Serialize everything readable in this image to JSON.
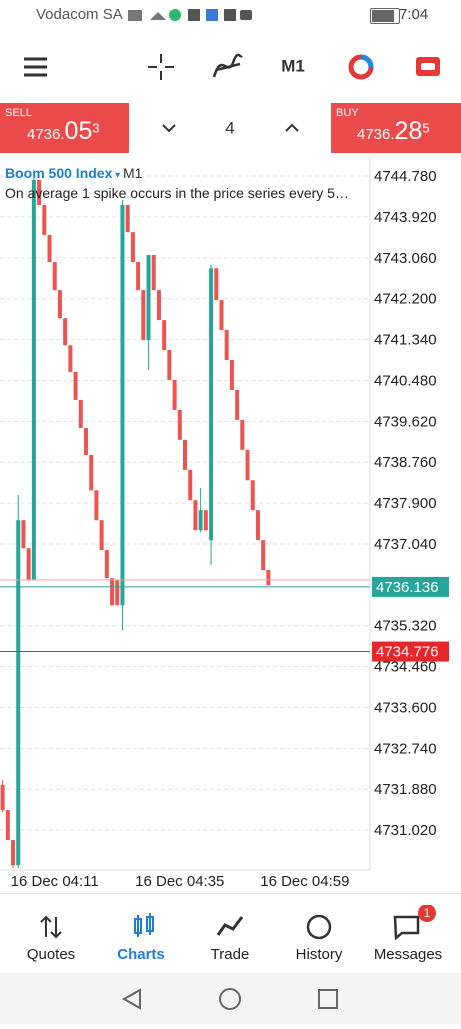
{
  "status_bar": {
    "carrier": "Vodacom SA",
    "time": "7:04"
  },
  "toolbar": {
    "timeframe": "M1"
  },
  "trade_panel": {
    "sell_label": "SELL",
    "sell_prefix": "4736.",
    "sell_big": "05",
    "sell_small": "3",
    "lot": "4",
    "buy_label": "BUY",
    "buy_prefix": "4736.",
    "buy_big": "28",
    "buy_small": "5"
  },
  "chart_data": {
    "type": "candlestick",
    "title": "Boom 500 Index",
    "timeframe": "M1",
    "subtitle": "On average 1 spike occurs in the price series every 5…",
    "categories": [
      null,
      null,
      null,
      null,
      null,
      null,
      null,
      null,
      null,
      null,
      "16 Dec 04:11",
      null,
      null,
      null,
      null,
      null,
      null,
      null,
      null,
      null,
      null,
      null,
      null,
      null,
      null,
      null,
      null,
      null,
      null,
      null,
      null,
      null,
      null,
      null,
      "16 Dec 04:35",
      null,
      null,
      null,
      null,
      null,
      null,
      null,
      null,
      null,
      null,
      null,
      null,
      null,
      null,
      null,
      null,
      null,
      null,
      null,
      null,
      null,
      null,
      null,
      "16 Dec 04:59",
      null,
      null,
      null,
      null,
      null,
      null,
      null,
      null,
      null,
      null,
      null,
      null
    ],
    "open": [
      4731.97,
      4731.44,
      4730.81,
      4730.28,
      4737.54,
      4736.95,
      4736.28,
      4744.7,
      4744.17,
      4743.54,
      4742.97,
      4742.38,
      4741.79,
      4741.22,
      4740.66,
      4740.07,
      4739.48,
      4738.91,
      4738.17,
      4737.54,
      4736.91,
      4736.32,
      4736.28,
      4735.75,
      4744.17,
      4743.6,
      4742.97,
      4742.38,
      4741.33,
      4743.12,
      4742.38,
      4741.75,
      4741.12,
      4740.49,
      4739.86,
      4739.23,
      4738.6,
      4737.96,
      4737.33,
      4737.75,
      4737.12,
      4742.84,
      4742.17,
      4741.54,
      4740.91,
      4740.28,
      4739.65,
      4739.02,
      4738.38,
      4737.75,
      4737.12,
      4736.49,
      null,
      null,
      null,
      null,
      null,
      null,
      null,
      null,
      null,
      null,
      null,
      null,
      null,
      null,
      null,
      null,
      null,
      null,
      null
    ],
    "high": [
      4732.07,
      4731.44,
      4730.81,
      4738.07,
      4737.54,
      4736.95,
      4744.74,
      4744.7,
      4744.17,
      4743.54,
      4742.97,
      4742.38,
      4741.79,
      4741.22,
      4740.66,
      4740.07,
      4739.48,
      4738.91,
      4738.17,
      4737.54,
      4736.91,
      4736.32,
      4736.28,
      4744.28,
      4744.17,
      4743.6,
      4742.97,
      4742.38,
      4743.12,
      4743.12,
      4742.38,
      4741.75,
      4741.12,
      4740.49,
      4739.86,
      4739.23,
      4738.6,
      4737.96,
      4738.22,
      4737.75,
      4742.91,
      4742.84,
      4742.17,
      4741.54,
      4740.91,
      4740.28,
      4739.65,
      4739.02,
      4738.38,
      4737.75,
      4737.12,
      4736.49,
      null,
      null,
      null,
      null,
      null,
      null,
      null,
      null,
      null,
      null,
      null,
      null,
      null,
      null,
      null,
      null,
      null,
      null,
      null
    ],
    "low": [
      4731.4,
      4730.81,
      4730.22,
      4730.22,
      4736.95,
      4736.28,
      4736.28,
      4744.17,
      4743.54,
      4742.97,
      4742.38,
      4741.79,
      4741.22,
      4740.66,
      4740.07,
      4739.48,
      4738.91,
      4738.17,
      4737.54,
      4736.91,
      4736.32,
      4735.75,
      4735.75,
      4735.23,
      4743.6,
      4742.97,
      4742.38,
      4741.33,
      4740.7,
      4742.38,
      4741.75,
      4741.12,
      4740.49,
      4739.86,
      4739.23,
      4738.6,
      4737.96,
      4737.33,
      4737.29,
      4737.33,
      4736.6,
      4742.17,
      4741.54,
      4740.91,
      4740.28,
      4739.65,
      4739.02,
      4738.38,
      4737.75,
      4737.12,
      4736.49,
      4736.17,
      null,
      null,
      null,
      null,
      null,
      null,
      null,
      null,
      null,
      null,
      null,
      null,
      null,
      null,
      null,
      null,
      null,
      null,
      null
    ],
    "close": [
      4731.44,
      4730.81,
      4730.28,
      4737.54,
      4736.95,
      4736.28,
      4744.7,
      4744.17,
      4743.54,
      4742.97,
      4742.38,
      4741.79,
      4741.22,
      4740.66,
      4740.07,
      4739.48,
      4738.91,
      4738.17,
      4737.54,
      4736.91,
      4736.32,
      4735.75,
      4735.75,
      4744.17,
      4743.6,
      4742.97,
      4742.38,
      4741.33,
      4743.12,
      4742.38,
      4741.75,
      4741.12,
      4740.49,
      4739.86,
      4739.23,
      4738.6,
      4737.96,
      4737.33,
      4737.75,
      4737.33,
      4742.84,
      4742.17,
      4741.54,
      4740.91,
      4740.28,
      4739.65,
      4739.02,
      4738.38,
      4737.75,
      4737.12,
      4736.49,
      4736.17,
      null,
      null,
      null,
      null,
      null,
      null,
      null,
      null,
      null,
      null,
      null,
      null,
      null,
      null,
      null,
      null,
      null,
      null,
      null
    ],
    "up_color": "#26a69a",
    "down_color": "#ef5350",
    "ylim": [
      4730.18,
      4745.16
    ],
    "yticks": [
      {
        "value": 4744.78,
        "label": "4744.780"
      },
      {
        "value": 4743.92,
        "label": "4743.920"
      },
      {
        "value": 4743.06,
        "label": "4743.060"
      },
      {
        "value": 4742.2,
        "label": "4742.200"
      },
      {
        "value": 4741.34,
        "label": "4741.340"
      },
      {
        "value": 4740.48,
        "label": "4740.480"
      },
      {
        "value": 4739.62,
        "label": "4739.620"
      },
      {
        "value": 4738.76,
        "label": "4738.760"
      },
      {
        "value": 4737.9,
        "label": "4737.900"
      },
      {
        "value": 4737.04,
        "label": "4737.040"
      },
      {
        "value": 4735.32,
        "label": "4735.320"
      },
      {
        "value": 4734.46,
        "label": "4734.460"
      },
      {
        "value": 4733.6,
        "label": "4733.600"
      },
      {
        "value": 4732.74,
        "label": "4732.740"
      },
      {
        "value": 4731.88,
        "label": "4731.880"
      },
      {
        "value": 4731.02,
        "label": "4731.020"
      }
    ],
    "grid": true,
    "ask": 4736.285,
    "ask_color": "#f4a7a7",
    "price_lines": [
      {
        "value": 4736.136,
        "color": "#26a69a"
      },
      {
        "value": 4734.776,
        "color": "#e8262a"
      }
    ]
  },
  "bottom_nav": {
    "items": [
      "Quotes",
      "Charts",
      "Trade",
      "History",
      "Messages"
    ],
    "badge": "1"
  }
}
